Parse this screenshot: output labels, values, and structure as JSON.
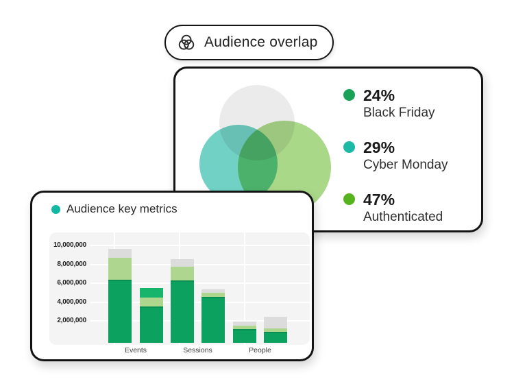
{
  "badge": {
    "label": "Audience overlap",
    "icon": "venn-diagram"
  },
  "overlap_card": {
    "venn_circles": [
      {
        "name": "top-gray",
        "color": "rgba(0,0,0,0.08)"
      },
      {
        "name": "left-teal",
        "color": "rgba(18,178,158,0.60)"
      },
      {
        "name": "right-green",
        "color": "rgba(108,188,52,0.58)"
      }
    ],
    "legend": [
      {
        "value": "24%",
        "label": "Black Friday",
        "color": "#18a157"
      },
      {
        "value": "29%",
        "label": "Cyber Monday",
        "color": "#1cb9a6"
      },
      {
        "value": "47%",
        "label": "Authenticated",
        "color": "#55b41e"
      }
    ]
  },
  "metrics_card": {
    "title": "Audience key metrics",
    "title_dot_color": "#14b8a3"
  },
  "chart_data": [
    {
      "type": "venn",
      "title": "Audience overlap",
      "segments": [
        {
          "label": "Black Friday",
          "value_pct": 24,
          "color": "#18a157"
        },
        {
          "label": "Cyber Monday",
          "value_pct": 29,
          "color": "#1cb9a6"
        },
        {
          "label": "Authenticated",
          "value_pct": 47,
          "color": "#55b41e"
        }
      ]
    },
    {
      "type": "bar",
      "stacked": true,
      "title": "Audience key metrics",
      "xlabel": "",
      "ylabel": "",
      "categories": [
        "Events",
        "Sessions",
        "People"
      ],
      "y_ticks": [
        "10,000,000",
        "8,000,000",
        "6,000,000",
        "4,000,000",
        "2,000,000"
      ],
      "ylim": [
        0,
        10000000
      ],
      "grid": true,
      "legend_position": "none",
      "colors": {
        "green": "#0ca15e",
        "light_green": "#aed68f",
        "gray": "#dcdcdc",
        "emerald": "#17b56c"
      },
      "bars": [
        {
          "category": "Events",
          "stack": [
            {
              "color": "green",
              "value": 6400000
            },
            {
              "color": "light_green",
              "value": 2300000
            },
            {
              "color": "gray",
              "value": 1000000
            }
          ]
        },
        {
          "category": "Events",
          "stack": [
            {
              "color": "green",
              "value": 3600000
            },
            {
              "color": "light_green",
              "value": 900000
            },
            {
              "color": "emerald",
              "value": 1000000
            }
          ]
        },
        {
          "category": "Sessions",
          "stack": [
            {
              "color": "green",
              "value": 6300000
            },
            {
              "color": "light_green",
              "value": 1500000
            },
            {
              "color": "gray",
              "value": 800000
            }
          ]
        },
        {
          "category": "Sessions",
          "stack": [
            {
              "color": "green",
              "value": 4600000
            },
            {
              "color": "light_green",
              "value": 400000
            },
            {
              "color": "gray",
              "value": 400000
            }
          ]
        },
        {
          "category": "People",
          "stack": [
            {
              "color": "green",
              "value": 1200000
            },
            {
              "color": "light_green",
              "value": 350000
            },
            {
              "color": "gray",
              "value": 400000
            }
          ]
        },
        {
          "category": "People",
          "stack": [
            {
              "color": "green",
              "value": 900000
            },
            {
              "color": "light_green",
              "value": 350000
            },
            {
              "color": "gray",
              "value": 1200000
            }
          ]
        }
      ]
    }
  ]
}
